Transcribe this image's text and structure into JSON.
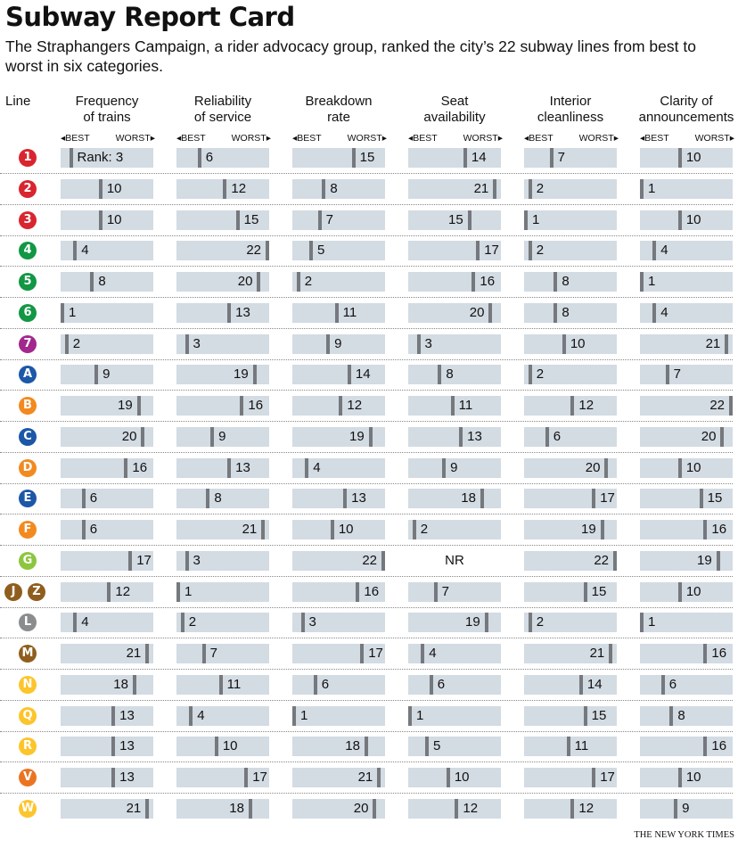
{
  "header": {
    "title": "Subway Report Card",
    "subtitle": "The Straphangers Campaign, a rider advocacy group, ranked the city’s 22 subway lines from best to worst in six categories.",
    "line_label": "Line",
    "best_label": "BEST",
    "worst_label": "WORST",
    "rank_prefix": "Rank: ",
    "credit": "THE NEW YORK TIMES"
  },
  "chart_data": {
    "type": "table",
    "title": "Subway Report Card",
    "rank_range": [
      1,
      22
    ],
    "not_rated_label": "NR",
    "categories": [
      {
        "line1": "Frequency",
        "line2": "of trains"
      },
      {
        "line1": "Reliability",
        "line2": "of service"
      },
      {
        "line1": "Breakdown",
        "line2": "rate"
      },
      {
        "line1": "Seat",
        "line2": "availability"
      },
      {
        "line1": "Interior",
        "line2": "cleanliness"
      },
      {
        "line1": "Clarity of",
        "line2": "announcements"
      }
    ],
    "rows": [
      {
        "lines": [
          {
            "label": "1",
            "color": "#d9252f"
          }
        ],
        "ranks": [
          3,
          6,
          15,
          14,
          7,
          10
        ],
        "label_left": []
      },
      {
        "lines": [
          {
            "label": "2",
            "color": "#d9252f"
          }
        ],
        "ranks": [
          10,
          12,
          8,
          21,
          2,
          1
        ],
        "label_left": [
          3
        ]
      },
      {
        "lines": [
          {
            "label": "3",
            "color": "#d9252f"
          }
        ],
        "ranks": [
          10,
          15,
          7,
          15,
          1,
          10
        ],
        "label_left": [
          3
        ]
      },
      {
        "lines": [
          {
            "label": "4",
            "color": "#129744"
          }
        ],
        "ranks": [
          4,
          22,
          5,
          17,
          2,
          4
        ],
        "label_left": [
          1
        ]
      },
      {
        "lines": [
          {
            "label": "5",
            "color": "#129744"
          }
        ],
        "ranks": [
          8,
          20,
          2,
          16,
          8,
          1
        ],
        "label_left": [
          1
        ]
      },
      {
        "lines": [
          {
            "label": "6",
            "color": "#129744"
          }
        ],
        "ranks": [
          1,
          13,
          11,
          20,
          8,
          4
        ],
        "label_left": [
          3
        ]
      },
      {
        "lines": [
          {
            "label": "7",
            "color": "#a2288e"
          }
        ],
        "ranks": [
          2,
          3,
          9,
          3,
          10,
          21
        ],
        "label_left": [
          5
        ]
      },
      {
        "lines": [
          {
            "label": "A",
            "color": "#1c57a8"
          }
        ],
        "ranks": [
          9,
          19,
          14,
          8,
          2,
          7
        ],
        "label_left": [
          1
        ]
      },
      {
        "lines": [
          {
            "label": "B",
            "color": "#f28a1f"
          }
        ],
        "ranks": [
          19,
          16,
          12,
          11,
          12,
          22
        ],
        "label_left": [
          0,
          5
        ]
      },
      {
        "lines": [
          {
            "label": "C",
            "color": "#1c57a8"
          }
        ],
        "ranks": [
          20,
          9,
          19,
          13,
          6,
          20
        ],
        "label_left": [
          0,
          2,
          5
        ]
      },
      {
        "lines": [
          {
            "label": "D",
            "color": "#f28a1f"
          }
        ],
        "ranks": [
          16,
          13,
          4,
          9,
          20,
          10
        ],
        "label_left": [
          4
        ]
      },
      {
        "lines": [
          {
            "label": "E",
            "color": "#1c57a8"
          }
        ],
        "ranks": [
          6,
          8,
          13,
          18,
          17,
          15
        ],
        "label_left": [
          3
        ]
      },
      {
        "lines": [
          {
            "label": "F",
            "color": "#f28a1f"
          }
        ],
        "ranks": [
          6,
          21,
          10,
          2,
          19,
          16
        ],
        "label_left": [
          1,
          4
        ]
      },
      {
        "lines": [
          {
            "label": "G",
            "color": "#8cc63f"
          }
        ],
        "ranks": [
          17,
          3,
          22,
          null,
          22,
          19
        ],
        "label_left": [
          2,
          4,
          5
        ]
      },
      {
        "lines": [
          {
            "label": "J",
            "color": "#8f5e1e"
          },
          {
            "label": "Z",
            "color": "#8f5e1e"
          }
        ],
        "ranks": [
          12,
          1,
          16,
          7,
          15,
          10
        ],
        "label_left": []
      },
      {
        "lines": [
          {
            "label": "L",
            "color": "#8a8c8e"
          }
        ],
        "ranks": [
          4,
          2,
          3,
          19,
          2,
          1
        ],
        "label_left": [
          3
        ]
      },
      {
        "lines": [
          {
            "label": "M",
            "color": "#8f5e1e"
          }
        ],
        "ranks": [
          21,
          7,
          17,
          4,
          21,
          16
        ],
        "label_left": [
          0,
          4
        ]
      },
      {
        "lines": [
          {
            "label": "N",
            "color": "#fcc52c"
          }
        ],
        "ranks": [
          18,
          11,
          6,
          6,
          14,
          6
        ],
        "label_left": [
          0
        ]
      },
      {
        "lines": [
          {
            "label": "Q",
            "color": "#fcc52c"
          }
        ],
        "ranks": [
          13,
          4,
          1,
          1,
          15,
          8
        ],
        "label_left": []
      },
      {
        "lines": [
          {
            "label": "R",
            "color": "#fcc52c"
          }
        ],
        "ranks": [
          13,
          10,
          18,
          5,
          11,
          16
        ],
        "label_left": [
          2
        ]
      },
      {
        "lines": [
          {
            "label": "V",
            "color": "#eb7421"
          }
        ],
        "ranks": [
          13,
          17,
          21,
          10,
          17,
          10
        ],
        "label_left": [
          2
        ]
      },
      {
        "lines": [
          {
            "label": "W",
            "color": "#fcc52c"
          }
        ],
        "ranks": [
          21,
          18,
          20,
          12,
          12,
          9
        ],
        "label_left": [
          0,
          1,
          2
        ]
      }
    ]
  }
}
